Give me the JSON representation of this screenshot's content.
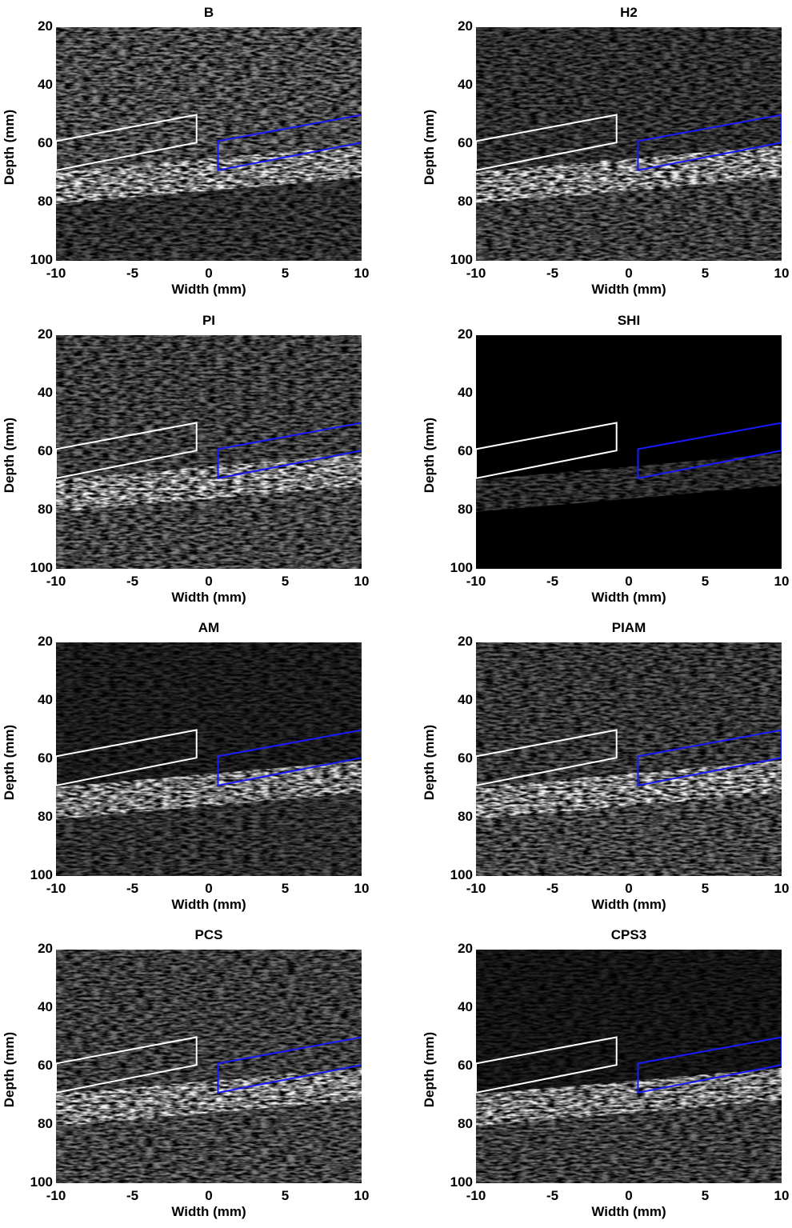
{
  "axes": {
    "xlabel": "Width (mm)",
    "ylabel": "Depth (mm)",
    "xticks": [
      "-10",
      "-5",
      "0",
      "5",
      "10"
    ],
    "yticks": [
      "20",
      "40",
      "60",
      "80",
      "100"
    ],
    "xlim": [
      -10,
      10
    ],
    "ylim": [
      20,
      100
    ]
  },
  "roi_colors": {
    "reference": "#ffffff",
    "target": "#1a1aff"
  },
  "panels": [
    {
      "title": "B",
      "top_brightness": 0.55,
      "band_brightness": 0.95,
      "below_brightness": 0.35,
      "target_brightness": 0.95
    },
    {
      "title": "H2",
      "top_brightness": 0.35,
      "band_brightness": 0.95,
      "below_brightness": 0.45,
      "target_brightness": 0.95
    },
    {
      "title": "PI",
      "top_brightness": 0.45,
      "band_brightness": 0.95,
      "below_brightness": 0.5,
      "target_brightness": 0.95
    },
    {
      "title": "SHI",
      "top_brightness": 0.0,
      "band_brightness": 0.3,
      "below_brightness": 0.0,
      "target_brightness": 0.3
    },
    {
      "title": "AM",
      "top_brightness": 0.2,
      "band_brightness": 0.9,
      "below_brightness": 0.35,
      "target_brightness": 0.85
    },
    {
      "title": "PIAM",
      "top_brightness": 0.4,
      "band_brightness": 0.95,
      "below_brightness": 0.5,
      "target_brightness": 0.9
    },
    {
      "title": "PCS",
      "top_brightness": 0.45,
      "band_brightness": 0.95,
      "below_brightness": 0.5,
      "target_brightness": 0.95
    },
    {
      "title": "CPS3",
      "top_brightness": 0.15,
      "band_brightness": 0.9,
      "below_brightness": 0.45,
      "target_brightness": 0.9
    }
  ]
}
